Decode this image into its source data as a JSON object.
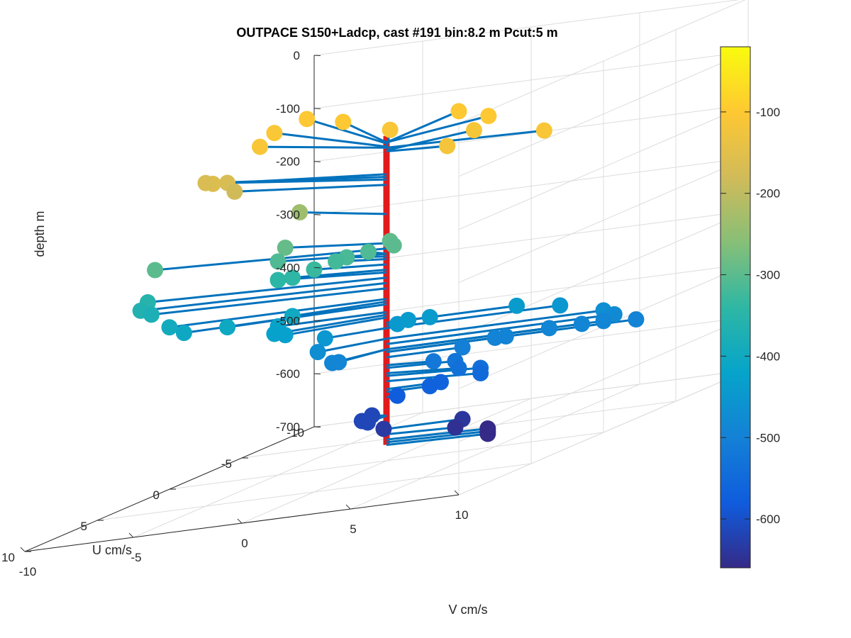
{
  "chart_data": {
    "type": "scatter",
    "title": "OUTPACE S150+Ladcp, cast #191 bin:8.2 m  Pcut:5 m",
    "xlabel": "V cm/s",
    "ylabel": "U cm/s",
    "zlabel": "depth m",
    "xlim": [
      -10,
      10
    ],
    "ylim": [
      -10,
      10
    ],
    "zlim": [
      -700,
      0
    ],
    "x_ticks": [
      "-10",
      "-5",
      "0",
      "5",
      "10"
    ],
    "y_ticks": [
      "-10",
      "-5",
      "0",
      "5",
      "10"
    ],
    "z_ticks": [
      "0",
      "-100",
      "-200",
      "-300",
      "-400",
      "-500",
      "-600",
      "-700"
    ],
    "grid": true,
    "profile_axis": {
      "color": "#e31a1c",
      "x": 0,
      "y": 0,
      "zrange": [
        -670,
        -88
      ]
    },
    "colorbar": {
      "colormap": "parula",
      "clim": [
        -660,
        -20
      ],
      "ticks": [
        "-100",
        "-200",
        "-300",
        "-400",
        "-500",
        "-600"
      ],
      "tick_values": [
        -100,
        -200,
        -300,
        -400,
        -500,
        -600
      ]
    },
    "line_color": "#0072bd",
    "points": [
      {
        "v": 2.7,
        "u": -3.0,
        "depth": -100
      },
      {
        "v": 2.7,
        "u": -2.0,
        "depth": -115
      },
      {
        "v": 3.2,
        "u": 0.6,
        "depth": -117
      },
      {
        "v": 7.8,
        "u": 0.8,
        "depth": -110
      },
      {
        "v": 0.0,
        "u": -5.0,
        "depth": -100
      },
      {
        "v": -6.0,
        "u": -6.0,
        "depth": -100
      },
      {
        "v": -9.0,
        "u": -8.0,
        "depth": -102
      },
      {
        "v": -9.5,
        "u": -6.5,
        "depth": -108
      },
      {
        "v": -8.5,
        "u": -4.0,
        "depth": -110
      },
      {
        "v": -2.5,
        "u": -4.0,
        "depth": -110
      },
      {
        "v": -10.0,
        "u": -3.0,
        "depth": -160
      },
      {
        "v": -11.0,
        "u": -4.0,
        "depth": -165
      },
      {
        "v": -10.0,
        "u": -4.0,
        "depth": -170
      },
      {
        "v": -9.0,
        "u": -3.0,
        "depth": -180
      },
      {
        "v": -6.0,
        "u": -3.0,
        "depth": -235
      },
      {
        "v": -6.0,
        "u": -2.0,
        "depth": -290
      },
      {
        "v": -0.5,
        "u": -1.0,
        "depth": -295
      },
      {
        "v": 0.0,
        "u": -0.5,
        "depth": -300
      },
      {
        "v": -6.0,
        "u": -1.5,
        "depth": -310
      },
      {
        "v": -12.0,
        "u": -2.0,
        "depth": -300
      },
      {
        "v": -1.5,
        "u": -1.0,
        "depth": -310
      },
      {
        "v": -2.5,
        "u": -1.0,
        "depth": -315
      },
      {
        "v": -3.0,
        "u": -1.0,
        "depth": -320
      },
      {
        "v": -4.0,
        "u": -1.0,
        "depth": -330
      },
      {
        "v": -5.0,
        "u": -1.0,
        "depth": -340
      },
      {
        "v": -6.0,
        "u": -1.5,
        "depth": -345
      },
      {
        "v": -12.0,
        "u": -1.5,
        "depth": -355
      },
      {
        "v": -12.0,
        "u": -1.0,
        "depth": -365
      },
      {
        "v": -11.5,
        "u": -1.0,
        "depth": -375
      },
      {
        "v": -10.0,
        "u": 0.0,
        "depth": -395
      },
      {
        "v": -9.0,
        "u": 0.5,
        "depth": -405
      },
      {
        "v": -7.0,
        "u": 0.5,
        "depth": -405
      },
      {
        "v": -4.0,
        "u": 0.5,
        "depth": -400
      },
      {
        "v": -5.0,
        "u": 0.0,
        "depth": -420
      },
      {
        "v": -4.5,
        "u": 1.0,
        "depth": -425
      },
      {
        "v": -4.0,
        "u": 1.0,
        "depth": -430
      },
      {
        "v": -2.5,
        "u": 0.5,
        "depth": -450
      },
      {
        "v": -2.5,
        "u": 1.0,
        "depth": -470
      },
      {
        "v": -1.5,
        "u": 1.5,
        "depth": -490
      },
      {
        "v": -1.2,
        "u": 1.5,
        "depth": -490
      },
      {
        "v": 0.5,
        "u": 0.0,
        "depth": -445
      },
      {
        "v": 1.0,
        "u": 0.0,
        "depth": -440
      },
      {
        "v": 2.0,
        "u": 0.0,
        "depth": -440
      },
      {
        "v": 6.0,
        "u": 0.0,
        "depth": -440
      },
      {
        "v": 8.0,
        "u": 0.0,
        "depth": -450
      },
      {
        "v": 10.0,
        "u": 0.0,
        "depth": -470
      },
      {
        "v": 10.5,
        "u": 0.0,
        "depth": -480
      },
      {
        "v": 11.5,
        "u": 0.0,
        "depth": -495
      },
      {
        "v": 10.0,
        "u": 0.0,
        "depth": -490
      },
      {
        "v": 9.0,
        "u": 0.0,
        "depth": -490
      },
      {
        "v": 7.5,
        "u": 0.0,
        "depth": -490
      },
      {
        "v": 5.5,
        "u": 0.0,
        "depth": -495
      },
      {
        "v": 5.0,
        "u": 0.0,
        "depth": -495
      },
      {
        "v": 3.5,
        "u": 0.0,
        "depth": -505
      },
      {
        "v": 2.5,
        "u": 0.5,
        "depth": -520
      },
      {
        "v": 3.5,
        "u": 0.5,
        "depth": -525
      },
      {
        "v": 4.0,
        "u": 1.0,
        "depth": -535
      },
      {
        "v": 5.0,
        "u": 1.0,
        "depth": -540
      },
      {
        "v": 5.0,
        "u": 1.0,
        "depth": -550
      },
      {
        "v": 2.5,
        "u": 0.0,
        "depth": -565
      },
      {
        "v": 2.0,
        "u": 0.0,
        "depth": -570
      },
      {
        "v": 0.5,
        "u": 0.0,
        "depth": -580
      },
      {
        "v": -0.2,
        "u": 1.0,
        "depth": -615
      },
      {
        "v": -0.8,
        "u": 0.5,
        "depth": -615
      },
      {
        "v": -1.0,
        "u": -0.5,
        "depth": -615
      },
      {
        "v": 0.2,
        "u": 0.5,
        "depth": -635
      },
      {
        "v": 3.5,
        "u": 0.0,
        "depth": -640
      },
      {
        "v": 3.5,
        "u": 0.5,
        "depth": -650
      },
      {
        "v": 5.0,
        "u": 0.5,
        "depth": -660
      },
      {
        "v": 5.0,
        "u": 0.5,
        "depth": -665
      },
      {
        "v": 5.0,
        "u": 0.5,
        "depth": -670
      }
    ]
  }
}
